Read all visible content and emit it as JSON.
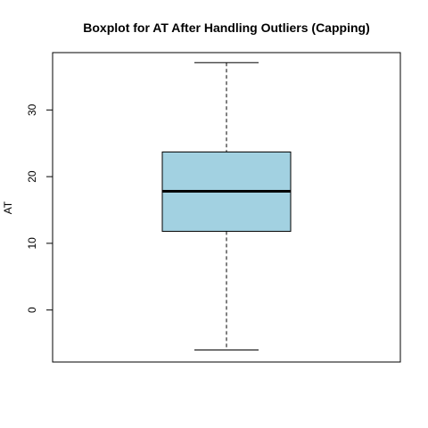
{
  "chart_data": {
    "type": "boxplot",
    "title": "Boxplot for AT After Handling Outliers (Capping)",
    "xlabel": "",
    "ylabel": "AT",
    "ylim": [
      -7.8,
      38.6
    ],
    "yticks": [
      0,
      10,
      20,
      30
    ],
    "series": [
      {
        "min": -6.0,
        "q1": 11.8,
        "median": 17.8,
        "q3": 23.7,
        "max": 37.1,
        "fill": "#a2d1e1"
      }
    ],
    "grid": false,
    "legend": "none",
    "colors": {
      "box_fill": "#a2d1e1",
      "stroke": "#000000"
    }
  }
}
